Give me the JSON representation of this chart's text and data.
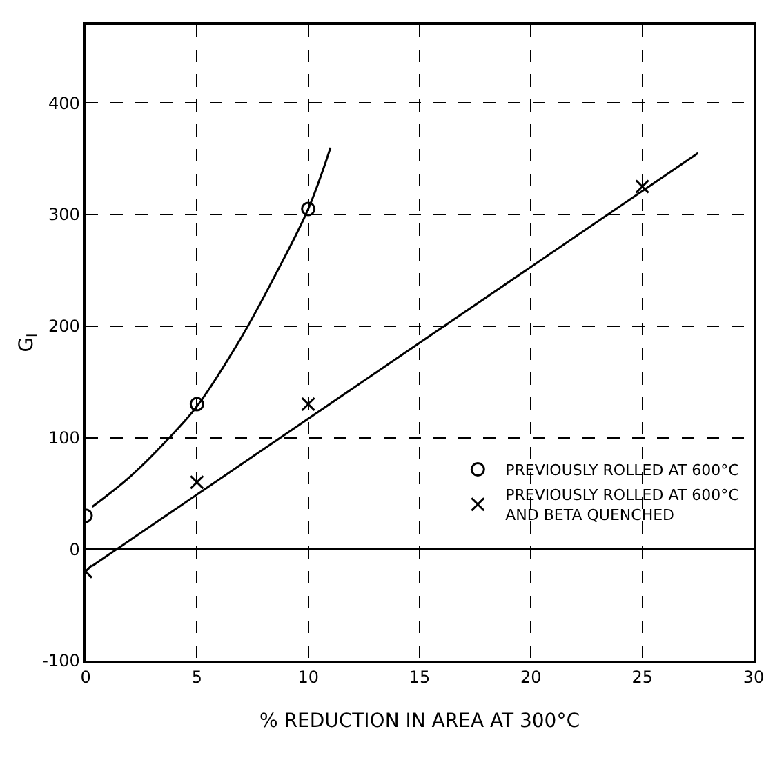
{
  "chart_data": {
    "type": "scatter",
    "xlabel": "% REDUCTION IN AREA AT 300°C",
    "ylabel": "G$_{l}$",
    "xlim": [
      0,
      30
    ],
    "xticks": [
      0,
      5,
      10,
      15,
      20,
      25,
      30
    ],
    "ylim": [
      -100,
      470
    ],
    "yticks": [
      -100,
      0,
      100,
      200,
      300,
      400
    ],
    "grid": true,
    "line_style": "dashed",
    "legend": "bottom right",
    "series": [
      {
        "name": "PREVIOUSLY ROLLED AT 600°C",
        "color": "#000000",
        "marker": "circle",
        "x": [
          0,
          5,
          10
        ],
        "values": [
          30,
          130,
          305
        ]
      },
      {
        "name": "PREVIOUSLY ROLLED AT 600°C\nAND BETA QUENCHED",
        "color": "#000000",
        "marker": "cross",
        "x": [
          0,
          5,
          10,
          25
        ],
        "values": [
          -20,
          60,
          130,
          325
        ]
      },
      {
        "type": "line",
        "color": "#000000",
        "marker": "none",
        "line_style": "solid",
        "x": [
          0.3,
          2,
          4,
          5,
          7,
          8.5,
          10,
          11
        ],
        "values": [
          38,
          65,
          105,
          128,
          190,
          245,
          305,
          360
        ]
      },
      {
        "type": "line",
        "color": "#000000",
        "marker": "none",
        "line_style": "solid",
        "x": [
          0.3,
          27.5
        ],
        "values": [
          -15,
          355
        ]
      }
    ]
  }
}
